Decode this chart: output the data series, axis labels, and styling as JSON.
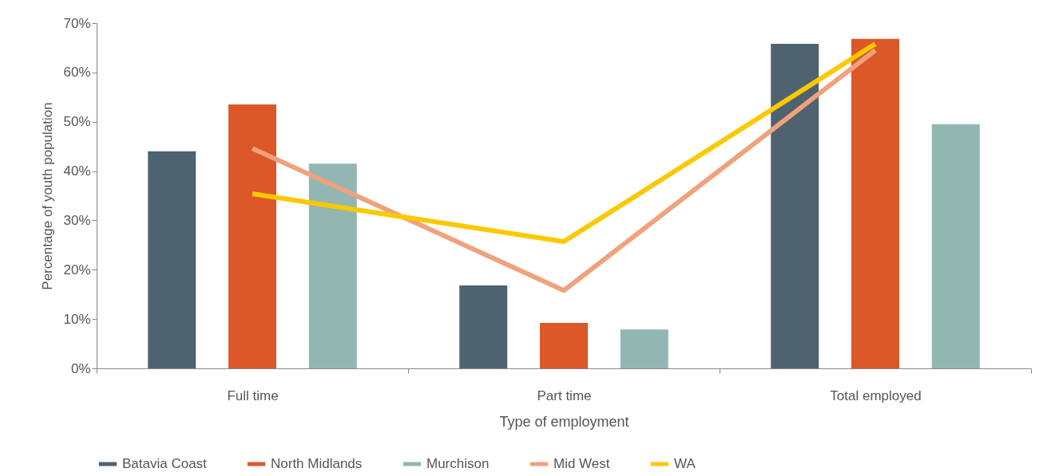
{
  "chart_data": {
    "type": "bar",
    "xlabel": "Type of employment",
    "ylabel": "Percentage of youth population",
    "categories": [
      "Full time",
      "Part time",
      "Total employed"
    ],
    "series": [
      {
        "name": "Batavia Coast",
        "color": "#4f6270",
        "values": [
          44.0,
          16.8,
          65.8
        ]
      },
      {
        "name": "North Midlands",
        "color": "#dc5828",
        "values": [
          53.5,
          9.2,
          66.8
        ]
      },
      {
        "name": "Murchison",
        "color": "#92b7b2",
        "values": [
          41.5,
          7.9,
          49.5
        ]
      },
      {
        "name": "Mid West",
        "type": "line",
        "color": "#efa27c",
        "values": [
          44.6,
          15.8,
          64.5
        ]
      },
      {
        "name": "WA",
        "type": "line",
        "color": "#fcc800",
        "values": [
          35.4,
          25.7,
          65.8
        ]
      }
    ],
    "ylim": [
      0,
      70
    ],
    "yticks": [
      {
        "value": 0,
        "label": "0%"
      },
      {
        "value": 10,
        "label": "10%"
      },
      {
        "value": 20,
        "label": "20%"
      },
      {
        "value": 30,
        "label": "30%"
      },
      {
        "value": 40,
        "label": "40%"
      },
      {
        "value": 50,
        "label": "50%"
      },
      {
        "value": 60,
        "label": "60%"
      },
      {
        "value": 70,
        "label": "70%"
      }
    ],
    "grid": false,
    "legend": "bottom",
    "line_style": "solid",
    "marker": "none"
  }
}
